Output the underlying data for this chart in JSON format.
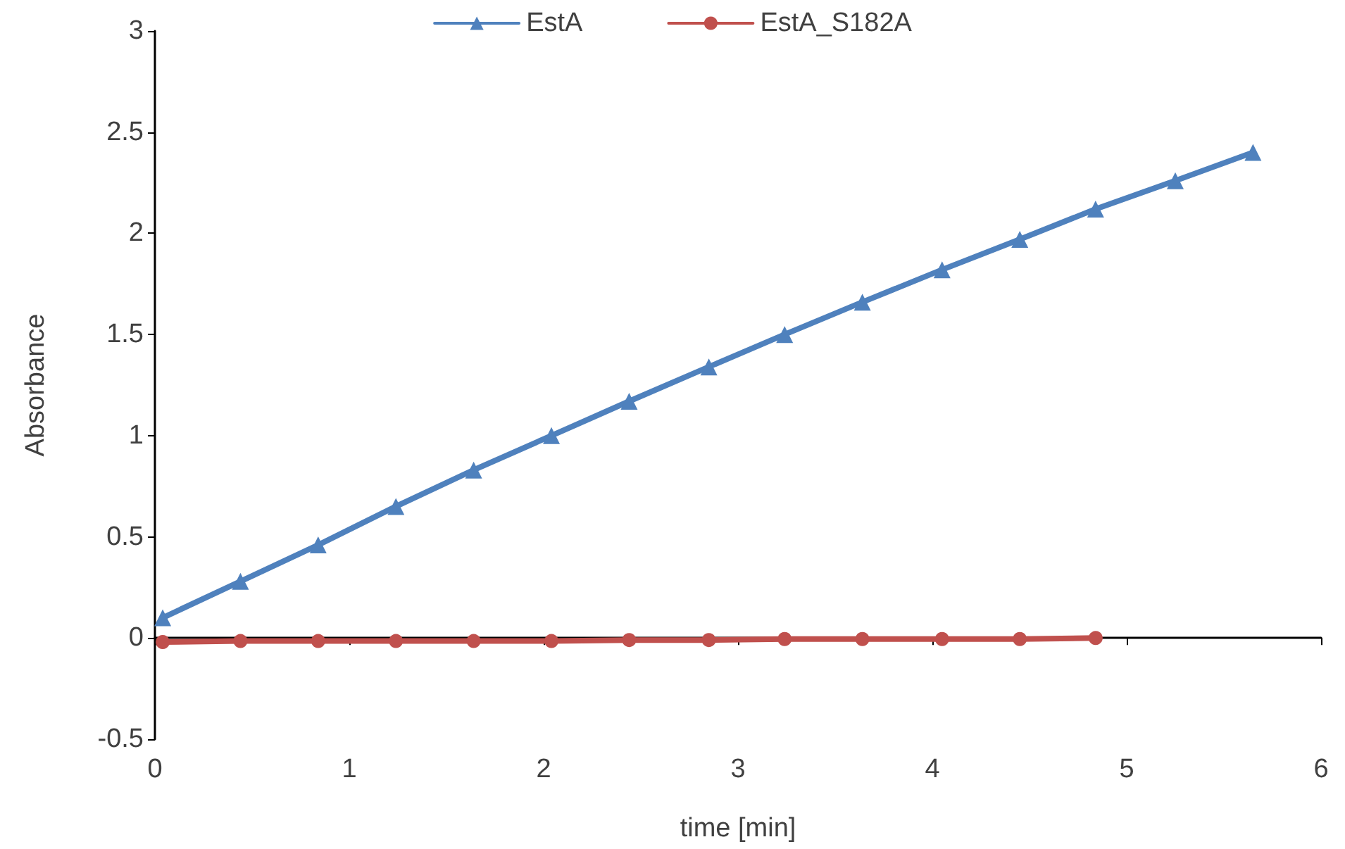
{
  "chart_data": {
    "type": "line",
    "xlabel": "time [min]",
    "ylabel": "Absorbance",
    "xlim": [
      0,
      6
    ],
    "xticks": [
      0,
      1,
      2,
      3,
      4,
      5,
      6
    ],
    "ylim": [
      -0.5,
      3
    ],
    "yticks": [
      -0.5,
      0,
      0.5,
      1,
      1.5,
      2,
      2.5,
      3
    ],
    "legend": "top",
    "x": [
      0.04,
      0.44,
      0.84,
      1.24,
      1.64,
      2.04,
      2.44,
      2.85,
      3.24,
      3.64,
      4.05,
      4.45,
      4.84,
      5.25,
      5.65
    ],
    "series": [
      {
        "name": "EstA",
        "color": "#4f81bd",
        "marker": "triangle",
        "values": [
          0.1,
          0.28,
          0.46,
          0.65,
          0.83,
          1.0,
          1.17,
          1.34,
          1.5,
          1.66,
          1.82,
          1.97,
          2.12,
          2.26,
          2.4
        ]
      },
      {
        "name": "EstA_S182A",
        "color": "#c0504d",
        "marker": "circle",
        "values": [
          -0.02,
          -0.015,
          -0.015,
          -0.015,
          -0.015,
          -0.015,
          -0.01,
          -0.01,
          -0.005,
          -0.005,
          -0.005,
          -0.005,
          0.0,
          null,
          null
        ]
      }
    ]
  }
}
